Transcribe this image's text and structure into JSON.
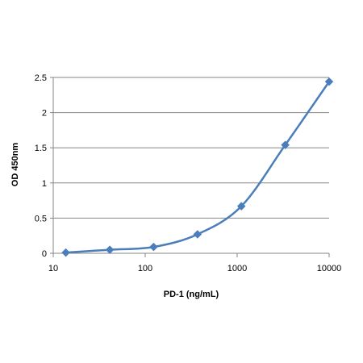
{
  "chart_data": {
    "type": "line",
    "title": "",
    "xlabel": "PD-1 (ng/mL)",
    "ylabel": "OD 450nm",
    "x_scale": "log",
    "xlim": [
      10,
      10000
    ],
    "ylim": [
      0,
      2.5
    ],
    "x_ticks": [
      "10",
      "100",
      "1000",
      "10000"
    ],
    "y_ticks": [
      "0",
      "0.5",
      "1",
      "1.5",
      "2",
      "2.5"
    ],
    "grid": "horizontal",
    "legend": "none",
    "series": [
      {
        "color": "#4a7ebb",
        "marker": "diamond",
        "smooth": true,
        "x": [
          13.7,
          41.2,
          123.5,
          370.4,
          1111.1,
          3333.3,
          10000
        ],
        "y": [
          0.01,
          0.05,
          0.09,
          0.27,
          0.67,
          1.54,
          2.44
        ]
      }
    ]
  }
}
